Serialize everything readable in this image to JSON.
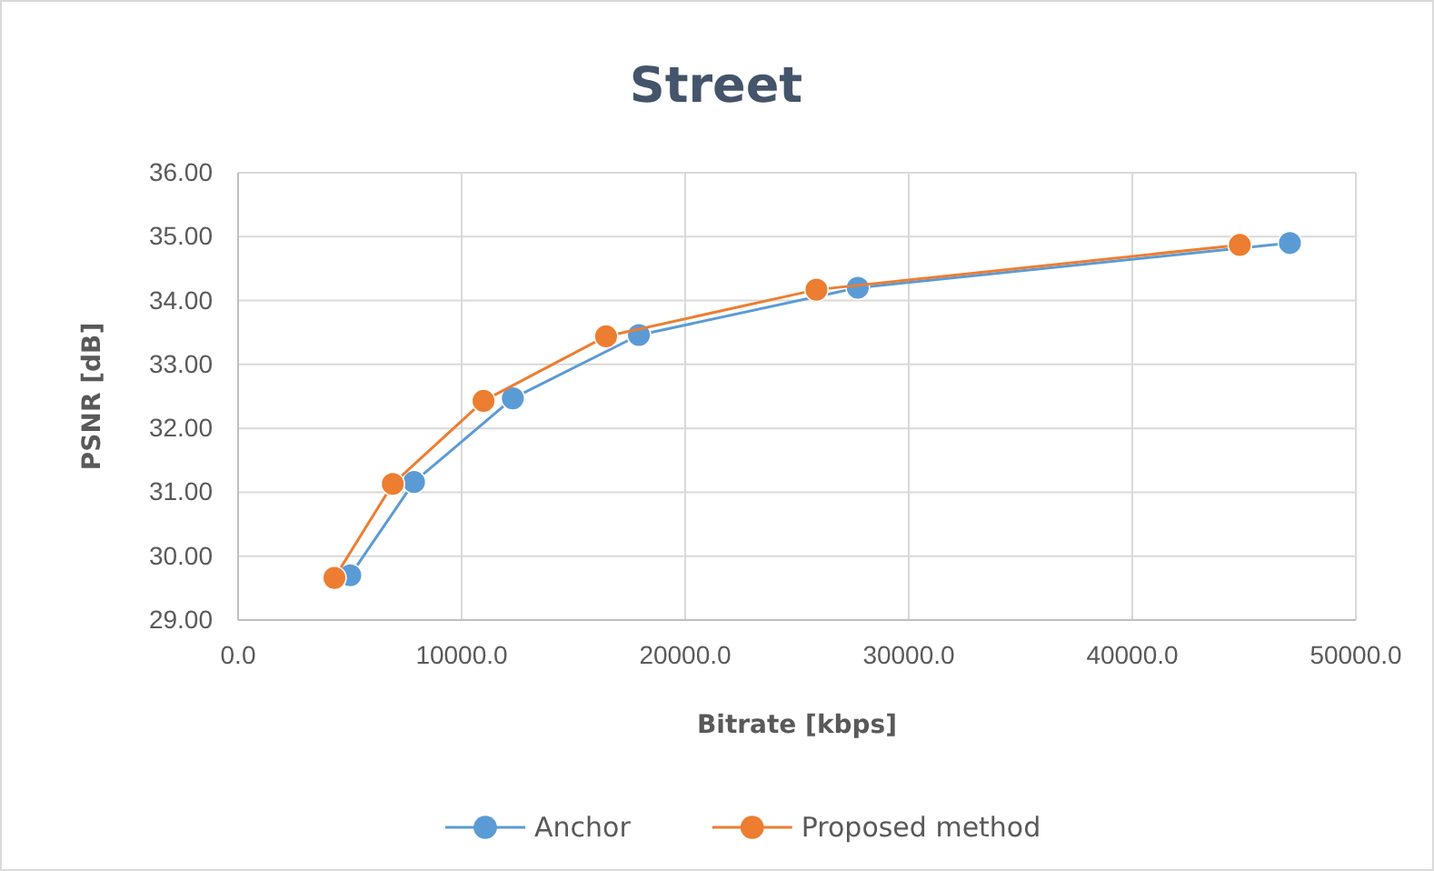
{
  "chart_data": {
    "type": "line",
    "title": "Street",
    "xlabel": "Bitrate [kbps]",
    "ylabel": "PSNR [dB]",
    "series": [
      {
        "name": "Anchor",
        "color": "#5b9bd5",
        "x": [
          5020,
          7870,
          12290,
          17930,
          27720,
          47050
        ],
        "values": [
          29.7,
          31.16,
          32.47,
          33.46,
          34.2,
          34.9
        ]
      },
      {
        "name": "Proposed method",
        "color": "#ed7d31",
        "x": [
          4310,
          6920,
          10980,
          16460,
          25870,
          44810
        ],
        "values": [
          29.66,
          31.13,
          32.43,
          33.44,
          34.17,
          34.87
        ]
      }
    ],
    "xlim": [
      0,
      50000
    ],
    "xticks": [
      {
        "value": 0,
        "label": "0.0"
      },
      {
        "value": 10000,
        "label": "10000.0"
      },
      {
        "value": 20000,
        "label": "20000.0"
      },
      {
        "value": 30000,
        "label": "30000.0"
      },
      {
        "value": 40000,
        "label": "40000.0"
      },
      {
        "value": 50000,
        "label": "50000.0"
      }
    ],
    "ylim": [
      29,
      36
    ],
    "yticks": [
      {
        "value": 29,
        "label": "29.00"
      },
      {
        "value": 30,
        "label": "30.00"
      },
      {
        "value": 31,
        "label": "31.00"
      },
      {
        "value": 32,
        "label": "32.00"
      },
      {
        "value": 33,
        "label": "33.00"
      },
      {
        "value": 34,
        "label": "34.00"
      },
      {
        "value": 35,
        "label": "35.00"
      },
      {
        "value": 36,
        "label": "36.00"
      }
    ],
    "grid": true,
    "legend": "bottom",
    "marker": "circle",
    "line_style": "solid"
  }
}
